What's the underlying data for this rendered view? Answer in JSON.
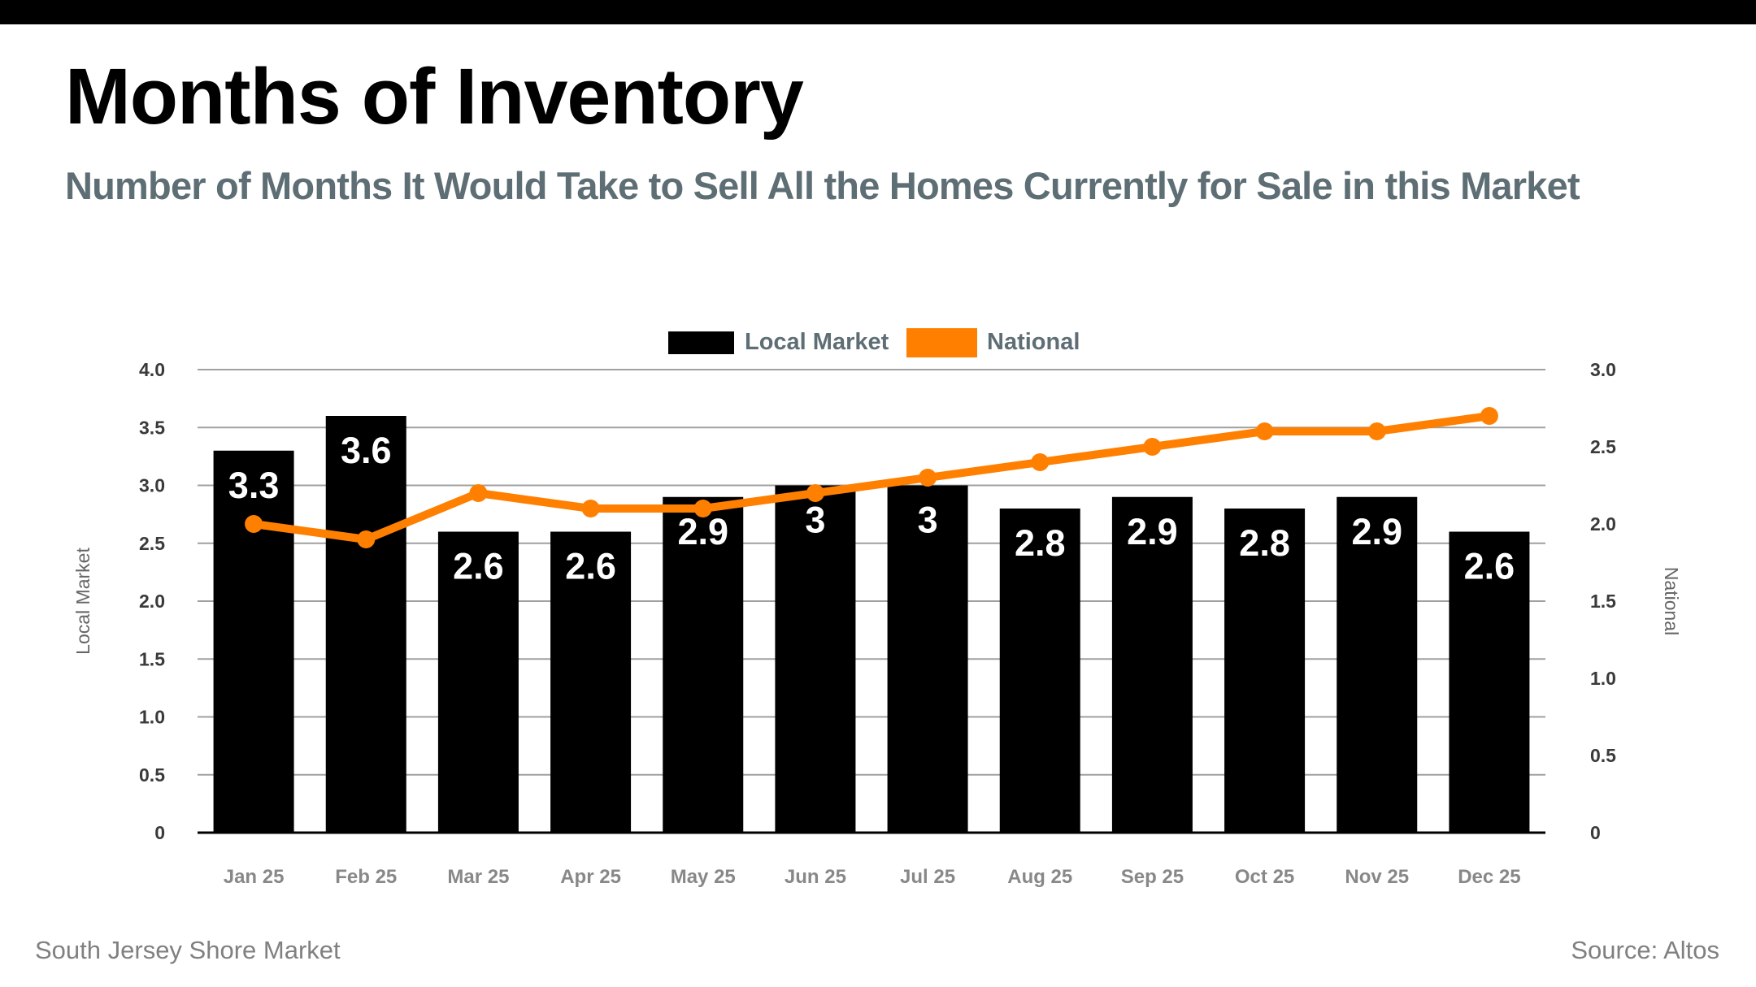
{
  "header": {
    "title": "Months of Inventory",
    "subtitle": "Number of Months It Would Take to Sell All the Homes Currently for Sale in this Market"
  },
  "footer": {
    "market": "South Jersey Shore Market",
    "source": "Source: Altos"
  },
  "colors": {
    "local_bar": "#000000",
    "national_line": "#FF8000",
    "gridline": "#A0A0A0",
    "subtitle": "#5E6E75"
  },
  "chart_data": {
    "type": "bar",
    "title": "Months of Inventory",
    "categories": [
      "Jan 25",
      "Feb 25",
      "Mar 25",
      "Apr 25",
      "May 25",
      "Jun 25",
      "Jul 25",
      "Aug 25",
      "Sep 25",
      "Oct 25",
      "Nov 25",
      "Dec 25"
    ],
    "series": [
      {
        "name": "Local Market",
        "type": "bar",
        "axis": "left",
        "values": [
          3.3,
          3.6,
          2.6,
          2.6,
          2.9,
          3,
          3,
          2.8,
          2.9,
          2.8,
          2.9,
          2.6
        ],
        "labels": [
          "3.3",
          "3.6",
          "2.6",
          "2.6",
          "2.9",
          "3",
          "3",
          "2.8",
          "2.9",
          "2.8",
          "2.9",
          "2.6"
        ]
      },
      {
        "name": "National",
        "type": "line",
        "axis": "right",
        "values": [
          2.0,
          1.9,
          2.2,
          2.1,
          2.1,
          2.2,
          2.3,
          2.4,
          2.5,
          2.6,
          2.6,
          2.7
        ]
      }
    ],
    "ylabel": "Local Market",
    "ylabel_right": "National",
    "xlabel": "",
    "ylim": [
      0,
      4.0
    ],
    "ylim_right": [
      0,
      3.0
    ],
    "yticks": [
      "0",
      "0.5",
      "1.0",
      "1.5",
      "2.0",
      "2.5",
      "3.0",
      "3.5",
      "4.0"
    ],
    "yticks_right": [
      "0",
      "0.5",
      "1.0",
      "1.5",
      "2.0",
      "2.5",
      "3.0"
    ],
    "grid": true,
    "legend": {
      "placement": "top-center",
      "entries": [
        "Local Market",
        "National"
      ]
    }
  }
}
